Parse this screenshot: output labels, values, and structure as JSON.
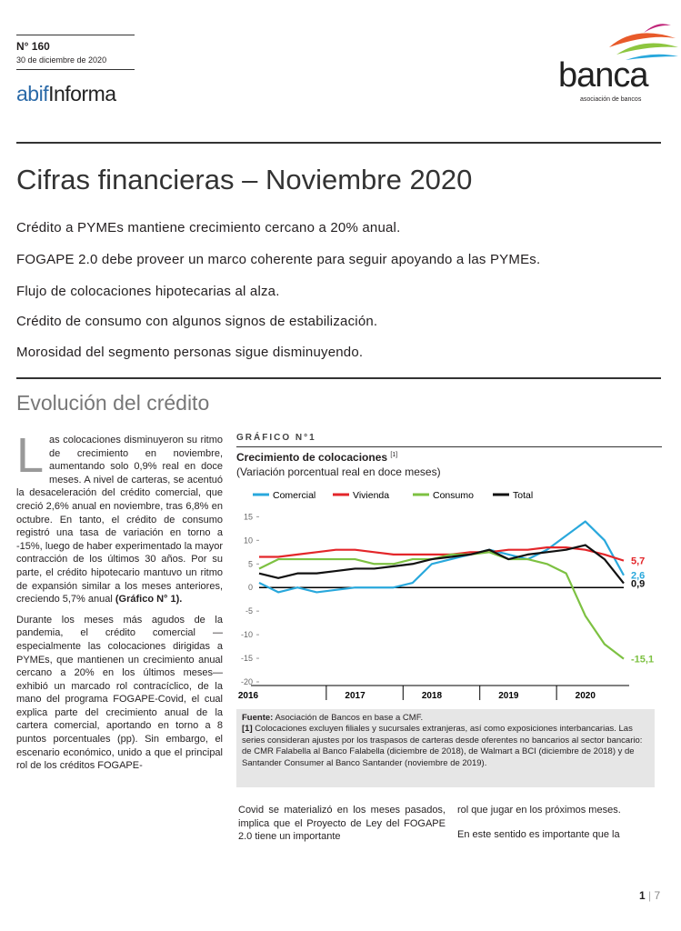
{
  "header": {
    "number": "N° 160",
    "date": "30 de diciembre de 2020",
    "logo_prefix": "abif",
    "logo_main": "Informa",
    "brand": "banca",
    "brand_sub": "asociación de bancos"
  },
  "title": "Cifras financieras – Noviembre 2020",
  "highlights": [
    "Crédito a PYMEs mantiene crecimiento cercano a 20% anual.",
    "FOGAPE 2.0 debe proveer un marco coherente para seguir apoyando a las PYMEs.",
    "Flujo de colocaciones hipotecarias al alza.",
    "Crédito de consumo con algunos signos de estabilización.",
    "Morosidad del segmento personas sigue disminuyendo."
  ],
  "section": "Evolución del crédito",
  "column1": {
    "drop_cap": "L",
    "paragraph1": "as colocaciones disminuyeron su ritmo de crecimiento en noviembre, aumentando solo 0,9% real en doce meses. A nivel de carteras, se acentuó la desaceleración del crédito comercial, que creció 2,6% anual en noviembre, tras 6,8% en octubre. En tanto, el crédito de consumo registró una tasa de variación en torno a -15%, luego de haber experimentado la mayor contracción de los últimos 30 años. Por su parte, el crédito hipotecario mantuvo un ritmo de expansión similar a los meses anteriores, creciendo 5,7% anual",
    "paragraph1_ref": "(Gráfico N° 1).",
    "paragraph2": "Durante los meses más agudos de la pandemia, el crédito comercial —especialmente las colocaciones dirigidas a PYMEs, que mantienen un crecimiento anual cercano a 20% en los últimos meses— exhibió un marcado rol contracíclico, de la mano del programa FOGAPE-Covid, el cual explica parte del crecimiento anual de la cartera comercial, aportando en torno a 8 puntos porcentuales (pp). Sin embargo, el escenario económico, unido a que el principal rol de los créditos FOGAPE-"
  },
  "chart": {
    "type": "line",
    "label": "GRÁFICO N°1",
    "title": "Crecimiento de colocaciones",
    "title_note": "[1]",
    "subtitle": "(Variación porcentual real en doce meses)",
    "categories": [
      "2016",
      null,
      null,
      null,
      null,
      "2017",
      null,
      null,
      null,
      "2018",
      null,
      null,
      null,
      "2019",
      null,
      null,
      null,
      "2020",
      null,
      null
    ],
    "series": [
      {
        "name": "Comercial",
        "color": "#29a8dc",
        "values": [
          1,
          -1,
          0,
          -1,
          -0.5,
          0,
          0,
          0,
          1,
          5,
          6,
          7,
          8,
          7,
          6,
          8,
          11,
          14,
          10,
          2.6
        ],
        "value_labels": [
          null,
          null,
          null,
          null,
          null,
          null,
          null,
          null,
          null,
          null,
          null,
          null,
          null,
          null,
          null,
          null,
          null,
          null,
          null,
          "2,6"
        ]
      },
      {
        "name": "Vivienda",
        "color": "#e3262a",
        "values": [
          6.5,
          6.5,
          7,
          7.5,
          8,
          8,
          7.5,
          7,
          7,
          7,
          7,
          7.5,
          7.5,
          8,
          8,
          8.5,
          8.5,
          8,
          7,
          5.7
        ],
        "value_labels": [
          null,
          null,
          null,
          null,
          null,
          null,
          null,
          null,
          null,
          null,
          null,
          null,
          null,
          null,
          null,
          null,
          null,
          null,
          null,
          "5,7"
        ]
      },
      {
        "name": "Consumo",
        "color": "#7dc142",
        "values": [
          4,
          6,
          6,
          6,
          6,
          6,
          5,
          5,
          6,
          6,
          7,
          7,
          7.5,
          6,
          6,
          5,
          3,
          -6,
          -12,
          -15.1
        ],
        "value_labels": [
          null,
          null,
          null,
          null,
          null,
          null,
          null,
          null,
          null,
          null,
          null,
          null,
          null,
          null,
          null,
          null,
          null,
          null,
          null,
          "-15,1"
        ]
      },
      {
        "name": "Total",
        "color": "#111111",
        "values": [
          3,
          2,
          3,
          3,
          3.5,
          4,
          4,
          4.5,
          5,
          6,
          6.5,
          7,
          8,
          6,
          7,
          7.5,
          8,
          9,
          6,
          0.9
        ],
        "value_labels": [
          null,
          null,
          null,
          null,
          null,
          null,
          null,
          null,
          null,
          null,
          null,
          null,
          null,
          null,
          null,
          null,
          null,
          null,
          null,
          "0,9"
        ]
      }
    ],
    "ylim": [
      -20,
      17
    ],
    "yticks": [
      15,
      10,
      5,
      0,
      -5,
      -10,
      -15,
      -20
    ],
    "source_label": "Fuente:",
    "source": "Asociación de Bancos en base a CMF.",
    "note_label": "[1]",
    "note": "Colocaciones excluyen filiales y sucursales extranjeras, así como exposiciones interbancarias. Las series consideran ajustes por los traspasos de carteras desde oferentes no bancarios al sector bancario: de CMR Falabella al Banco Falabella (diciembre de 2018), de Walmart a BCI (diciembre de 2018) y de Santander Consumer al Banco Santander (noviembre de 2019)."
  },
  "column2": "Covid se materializó en los meses pasados, implica que el Proyecto de Ley del FOGAPE 2.0 tiene un importante",
  "column3": {
    "paragraph1": "rol que jugar en los próximos meses.",
    "paragraph2": "En este sentido es importante que la"
  },
  "footer": {
    "page": "1",
    "total": "7"
  }
}
